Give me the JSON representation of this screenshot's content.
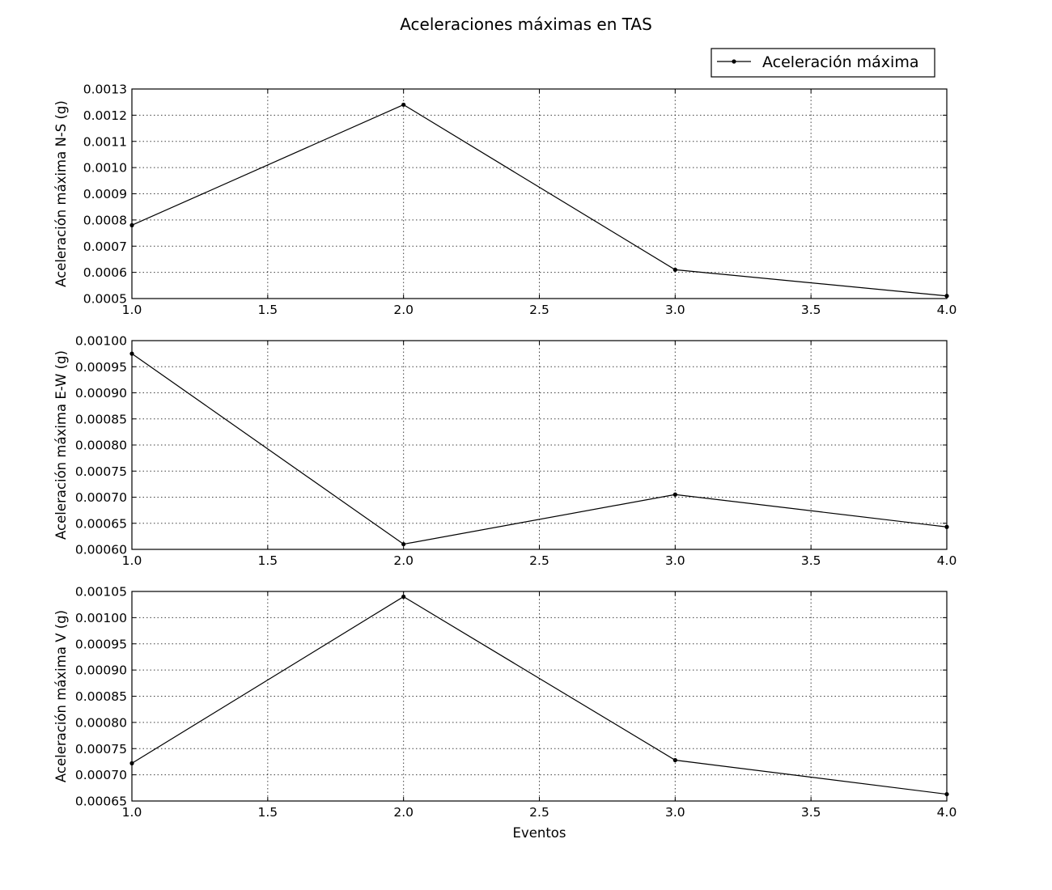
{
  "figure": {
    "title": "Aceleraciones máximas en TAS"
  },
  "legend": {
    "label": "Aceleración máxima",
    "placement": "upper-right"
  },
  "chart_data": [
    {
      "type": "line",
      "x": [
        1.0,
        2.0,
        3.0,
        4.0
      ],
      "series": [
        {
          "name": "Aceleración máxima",
          "values": [
            0.00078,
            0.00124,
            0.00061,
            0.00051
          ]
        }
      ],
      "title": "",
      "xlabel": "",
      "ylabel": "Aceleración máxima N-S (g)",
      "xlim": [
        1.0,
        4.0
      ],
      "ylim": [
        0.0005,
        0.0013
      ],
      "xticks": [
        1.0,
        1.5,
        2.0,
        2.5,
        3.0,
        3.5,
        4.0
      ],
      "xtick_labels": [
        "1.0",
        "1.5",
        "2.0",
        "2.5",
        "3.0",
        "3.5",
        "4.0"
      ],
      "yticks": [
        0.0005,
        0.0006,
        0.0007,
        0.0008,
        0.0009,
        0.001,
        0.0011,
        0.0012,
        0.0013
      ],
      "ytick_labels": [
        "0.0005",
        "0.0006",
        "0.0007",
        "0.0008",
        "0.0009",
        "0.0010",
        "0.0011",
        "0.0012",
        "0.0013"
      ],
      "grid": true,
      "line_color": "#000000",
      "marker": "dot"
    },
    {
      "type": "line",
      "x": [
        1.0,
        2.0,
        3.0,
        4.0
      ],
      "series": [
        {
          "name": "Aceleración máxima",
          "values": [
            0.000975,
            0.00061,
            0.000705,
            0.000643
          ]
        }
      ],
      "title": "",
      "xlabel": "",
      "ylabel": "Aceleración máxima E-W (g)",
      "xlim": [
        1.0,
        4.0
      ],
      "ylim": [
        0.0006,
        0.001
      ],
      "xticks": [
        1.0,
        1.5,
        2.0,
        2.5,
        3.0,
        3.5,
        4.0
      ],
      "xtick_labels": [
        "1.0",
        "1.5",
        "2.0",
        "2.5",
        "3.0",
        "3.5",
        "4.0"
      ],
      "yticks": [
        0.0006,
        0.00065,
        0.0007,
        0.00075,
        0.0008,
        0.00085,
        0.0009,
        0.00095,
        0.001
      ],
      "ytick_labels": [
        "0.00060",
        "0.00065",
        "0.00070",
        "0.00075",
        "0.00080",
        "0.00085",
        "0.00090",
        "0.00095",
        "0.00100"
      ],
      "grid": true,
      "line_color": "#000000",
      "marker": "dot"
    },
    {
      "type": "line",
      "x": [
        1.0,
        2.0,
        3.0,
        4.0
      ],
      "series": [
        {
          "name": "Aceleración máxima",
          "values": [
            0.000722,
            0.00104,
            0.000728,
            0.000663
          ]
        }
      ],
      "title": "",
      "xlabel": "Eventos",
      "ylabel": "Aceleración máxima V (g)",
      "xlim": [
        1.0,
        4.0
      ],
      "ylim": [
        0.00065,
        0.00105
      ],
      "xticks": [
        1.0,
        1.5,
        2.0,
        2.5,
        3.0,
        3.5,
        4.0
      ],
      "xtick_labels": [
        "1.0",
        "1.5",
        "2.0",
        "2.5",
        "3.0",
        "3.5",
        "4.0"
      ],
      "yticks": [
        0.00065,
        0.0007,
        0.00075,
        0.0008,
        0.00085,
        0.0009,
        0.00095,
        0.001,
        0.00105
      ],
      "ytick_labels": [
        "0.00065",
        "0.00070",
        "0.00075",
        "0.00080",
        "0.00085",
        "0.00090",
        "0.00095",
        "0.00100",
        "0.00105"
      ],
      "grid": true,
      "line_color": "#000000",
      "marker": "dot"
    }
  ]
}
